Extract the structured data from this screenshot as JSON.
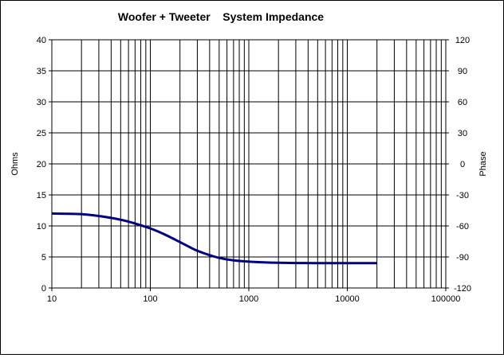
{
  "chart_data": {
    "type": "line",
    "title": "Woofer + Tweeter    System Impedance",
    "xlabel": "",
    "ylabel": "Ohms",
    "y2label": "Phase",
    "x_scale": "log",
    "xlim": [
      10,
      100000
    ],
    "ylim": [
      0,
      40
    ],
    "y2lim": [
      -120,
      120
    ],
    "grid": true,
    "x_tick_labels": [
      "10",
      "100",
      "1000",
      "10000",
      "100000"
    ],
    "y_tick_labels": [
      "0",
      "5",
      "10",
      "15",
      "20",
      "25",
      "30",
      "35",
      "40"
    ],
    "y2_tick_labels": [
      "-120",
      "-90",
      "-60",
      "-30",
      "0",
      "30",
      "60",
      "90",
      "120"
    ],
    "colors": {
      "series": "#000080",
      "grid": "#000000",
      "background": "#ffffff"
    },
    "series": [
      {
        "axis": "left",
        "x": [
          10,
          15,
          20,
          30,
          40,
          50,
          60,
          70,
          80,
          100,
          120,
          150,
          200,
          250,
          300,
          400,
          500,
          700,
          1000,
          1500,
          2000,
          3000,
          5000,
          10000,
          20000
        ],
        "values": [
          12.0,
          11.95,
          11.9,
          11.6,
          11.3,
          11.0,
          10.7,
          10.4,
          10.1,
          9.6,
          9.1,
          8.4,
          7.4,
          6.6,
          6.0,
          5.3,
          4.85,
          4.45,
          4.25,
          4.12,
          4.07,
          4.03,
          4.0,
          4.0,
          4.0
        ]
      }
    ]
  }
}
